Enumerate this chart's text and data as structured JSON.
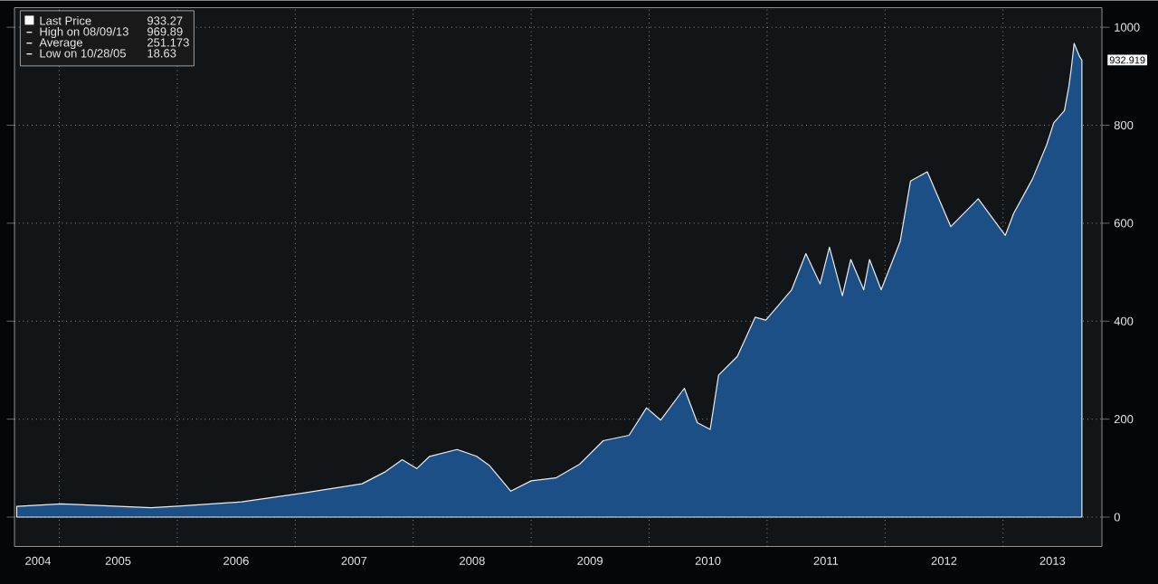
{
  "chart_data": {
    "type": "area",
    "series": [
      {
        "name": "Last Price",
        "color": "#1b4f86",
        "x": [
          "2004-08-22",
          "2005-01-08",
          "2005-10-12",
          "2006-01-15",
          "2006-07-19",
          "2007-01-26",
          "2007-07-27",
          "2007-10-08",
          "2007-11-28",
          "2008-01-12",
          "2008-02-21",
          "2008-05-16",
          "2008-07-16",
          "2008-08-25",
          "2008-10-30",
          "2009-01-01",
          "2009-03-18",
          "2009-05-31",
          "2009-08-12",
          "2009-10-31",
          "2009-12-24",
          "2010-02-06",
          "2010-04-20",
          "2010-05-30",
          "2010-07-09",
          "2010-08-04",
          "2010-10-01",
          "2010-11-25",
          "2010-12-28",
          "2011-03-18",
          "2011-05-01",
          "2011-06-14",
          "2011-07-13",
          "2011-08-22",
          "2011-09-17",
          "2011-10-27",
          "2011-11-14",
          "2011-12-20",
          "2012-02-17",
          "2012-03-20",
          "2012-05-11",
          "2012-07-23",
          "2012-10-16",
          "2013-01-08",
          "2013-02-03",
          "2013-04-02",
          "2013-05-16",
          "2013-06-07",
          "2013-07-10",
          "2013-07-24",
          "2013-08-01",
          "2013-08-09",
          "2013-08-26",
          "2013-09-02"
        ],
        "values": [
          22,
          27,
          19,
          23,
          31,
          49,
          68,
          93,
          117,
          99,
          124,
          138,
          124,
          105,
          53,
          74,
          80,
          108,
          156,
          167,
          223,
          198,
          263,
          193,
          179,
          290,
          328,
          408,
          402,
          464,
          538,
          476,
          551,
          452,
          526,
          464,
          526,
          464,
          563,
          686,
          705,
          593,
          650,
          575,
          620,
          690,
          760,
          805,
          830,
          880,
          920,
          967,
          940,
          933
        ]
      }
    ],
    "annotations": [
      "933.27",
      "High on 08/09/13",
      "969.89",
      "Average",
      "251.173",
      "Low on 10/28/05",
      "18.63",
      {
        "text": "932.919",
        "x": "2013-09-02",
        "y": 933
      }
    ],
    "xlim": [
      "2004-08-15",
      "2013-11-03"
    ],
    "xticks": [
      {
        "value": "2004-10-27",
        "label": "2004"
      },
      {
        "value": "2005-07-02",
        "label": "2005"
      },
      {
        "value": "2006-07-02",
        "label": "2006"
      },
      {
        "value": "2007-07-02",
        "label": "2007"
      },
      {
        "value": "2008-07-02",
        "label": "2008"
      },
      {
        "value": "2009-07-02",
        "label": "2009"
      },
      {
        "value": "2010-07-02",
        "label": "2010"
      },
      {
        "value": "2011-07-02",
        "label": "2011"
      },
      {
        "value": "2012-07-02",
        "label": "2012"
      },
      {
        "value": "2013-06-03",
        "label": "2013"
      },
      {
        "value": "2005-01-01",
        "label": null
      },
      {
        "value": "2006-01-01",
        "label": null
      },
      {
        "value": "2007-01-01",
        "label": null
      },
      {
        "value": "2008-01-01",
        "label": null
      },
      {
        "value": "2009-01-01",
        "label": null
      },
      {
        "value": "2010-01-01",
        "label": null
      },
      {
        "value": "2011-01-01",
        "label": null
      },
      {
        "value": "2012-01-01",
        "label": null
      },
      {
        "value": "2013-01-01",
        "label": null
      }
    ],
    "ylim": [
      -60,
      1040
    ],
    "yticks": [
      0,
      200,
      400,
      600,
      800,
      1000
    ],
    "grid": true,
    "legend": "top left"
  }
}
